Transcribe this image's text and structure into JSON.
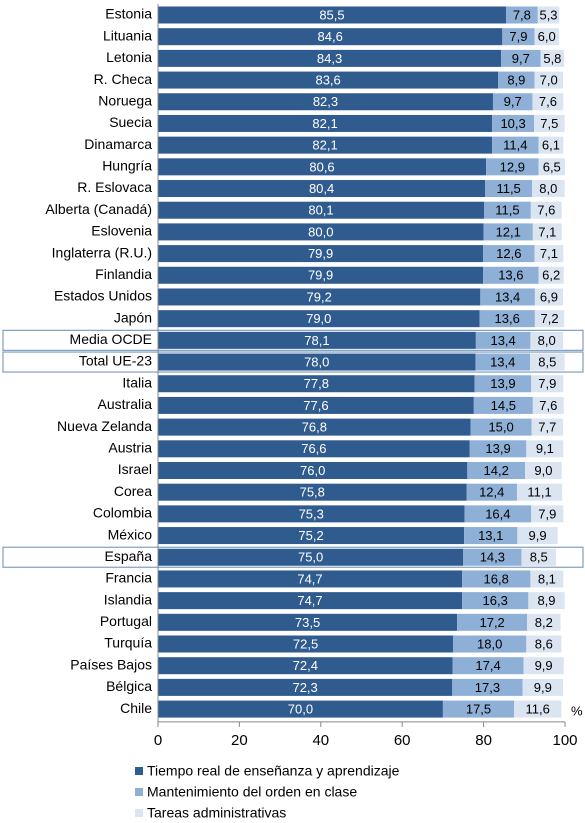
{
  "chart_data": {
    "type": "stacked-bar-horizontal",
    "categories": [
      "Estonia",
      "Lituania",
      "Letonia",
      "R. Checa",
      "Noruega",
      "Suecia",
      "Dinamarca",
      "Hungría",
      "R. Eslovaca",
      "Alberta (Canadá)",
      "Eslovenia",
      "Inglaterra (R.U.)",
      "Finlandia",
      "Estados Unidos",
      "Japón",
      "Media OCDE",
      "Total UE-23",
      "Italia",
      "Australia",
      "Nueva Zelanda",
      "Austria",
      "Israel",
      "Corea",
      "Colombia",
      "México",
      "España",
      "Francia",
      "Islandia",
      "Portugal",
      "Turquía",
      "Países Bajos",
      "Bélgica",
      "Chile"
    ],
    "highlighted": [
      "Media OCDE",
      "Total UE-23",
      "España"
    ],
    "series": [
      {
        "name": "Tiempo real de enseñanza y aprendizaje",
        "color": "#2f5b8e",
        "values": [
          85.5,
          84.6,
          84.3,
          83.6,
          82.3,
          82.1,
          82.1,
          80.6,
          80.4,
          80.1,
          80.0,
          79.9,
          79.9,
          79.2,
          79.0,
          78.1,
          78.0,
          77.8,
          77.6,
          76.8,
          76.6,
          76.0,
          75.8,
          75.3,
          75.2,
          75.0,
          74.7,
          74.7,
          73.5,
          72.5,
          72.4,
          72.3,
          70.0
        ],
        "value_labels": [
          "85,5",
          "84,6",
          "84,3",
          "83,6",
          "82,3",
          "82,1",
          "82,1",
          "80,6",
          "80,4",
          "80,1",
          "80,0",
          "79,9",
          "79,9",
          "79,2",
          "79,0",
          "78,1",
          "78,0",
          "77,8",
          "77,6",
          "76,8",
          "76,6",
          "76,0",
          "75,8",
          "75,3",
          "75,2",
          "75,0",
          "74,7",
          "74,7",
          "73,5",
          "72,5",
          "72,4",
          "72,3",
          "70,0"
        ]
      },
      {
        "name": "Mantenimiento del orden en clase",
        "color": "#8eafd6",
        "values": [
          7.8,
          7.9,
          9.7,
          8.9,
          9.7,
          10.3,
          11.4,
          12.9,
          11.5,
          11.5,
          12.1,
          12.6,
          13.6,
          13.4,
          13.6,
          13.4,
          13.4,
          13.9,
          14.5,
          15.0,
          13.9,
          14.2,
          12.4,
          16.4,
          13.1,
          14.3,
          16.8,
          16.3,
          17.2,
          18.0,
          17.4,
          17.3,
          17.5
        ],
        "value_labels": [
          "7,8",
          "7,9",
          "9,7",
          "8,9",
          "9,7",
          "10,3",
          "11,4",
          "12,9",
          "11,5",
          "11,5",
          "12,1",
          "12,6",
          "13,6",
          "13,4",
          "13,6",
          "13,4",
          "13,4",
          "13,9",
          "14,5",
          "15,0",
          "13,9",
          "14,2",
          "12,4",
          "16,4",
          "13,1",
          "14,3",
          "16,8",
          "16,3",
          "17,2",
          "18,0",
          "17,4",
          "17,3",
          "17,5"
        ]
      },
      {
        "name": "Tareas administrativas",
        "color": "#dbe4f1",
        "values": [
          5.3,
          6.0,
          5.8,
          7.0,
          7.6,
          7.5,
          6.1,
          6.5,
          8.0,
          7.6,
          7.1,
          7.1,
          6.2,
          6.9,
          7.2,
          8.0,
          8.5,
          7.9,
          7.6,
          7.7,
          9.1,
          9.0,
          11.1,
          7.9,
          9.9,
          8.5,
          8.1,
          8.9,
          8.2,
          8.6,
          9.9,
          9.9,
          11.6
        ],
        "value_labels": [
          "5,3",
          "6,0",
          "5,8",
          "7,0",
          "7,6",
          "7,5",
          "6,1",
          "6,5",
          "8,0",
          "7,6",
          "7,1",
          "7,1",
          "6,2",
          "6,9",
          "7,2",
          "8,0",
          "8,5",
          "7,9",
          "7,6",
          "7,7",
          "9,1",
          "9,0",
          "11,1",
          "7,9",
          "9,9",
          "8,5",
          "8,1",
          "8,9",
          "8,2",
          "8,6",
          "9,9",
          "9,9",
          "11,6"
        ]
      }
    ],
    "xlim": [
      0,
      100
    ],
    "xticks": [
      0,
      20,
      40,
      60,
      80,
      100
    ],
    "x_unit": "%"
  }
}
